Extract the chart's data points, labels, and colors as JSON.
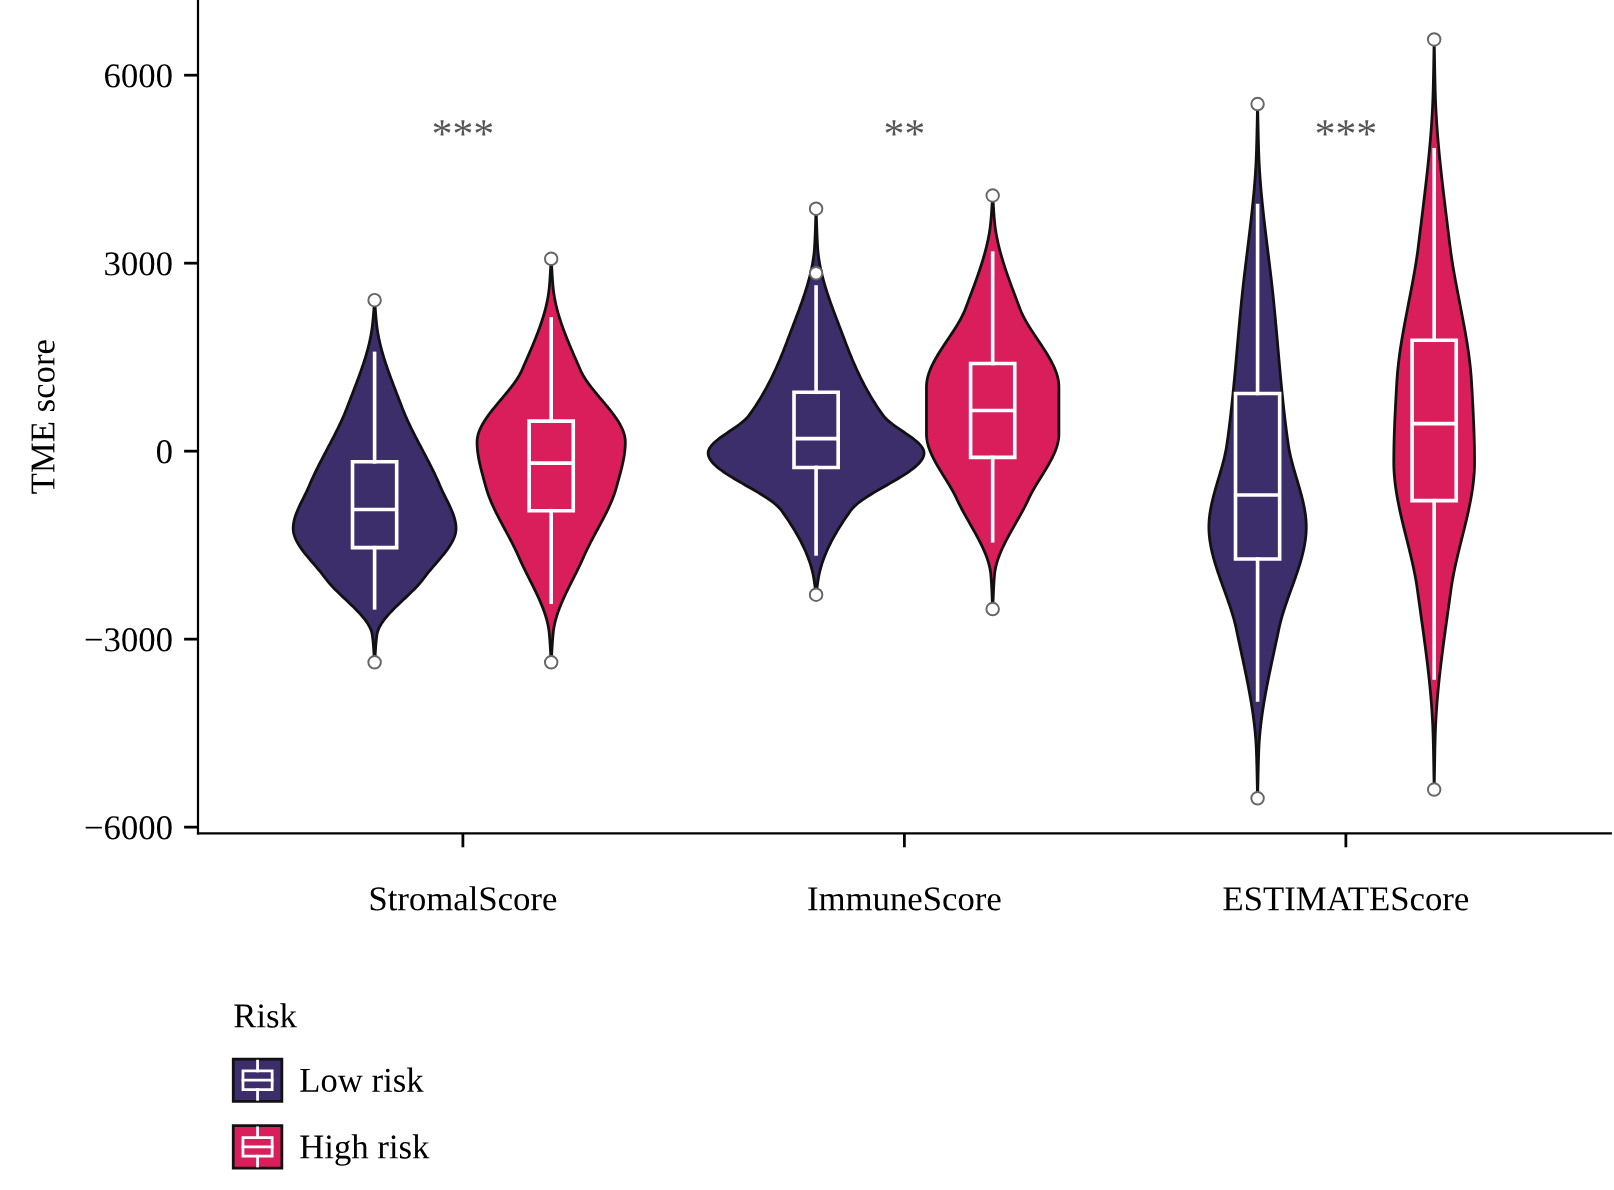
{
  "chart_data": {
    "type": "box",
    "ylabel": "TME score",
    "legend_title": "Risk",
    "legend": "bottom",
    "categories": [
      "StromalScore",
      "ImmuneScore",
      "ESTIMATEScore"
    ],
    "series": [
      {
        "name": "Low risk",
        "color": "#3c2d6b",
        "boxes": [
          {
            "low": -2500,
            "q1": -1540,
            "median": -930,
            "q3": -170,
            "high": 1560,
            "outliers": [
              -3370,
              2410
            ]
          },
          {
            "low": -1640,
            "q1": -260,
            "median": 200,
            "q3": 940,
            "high": 2620,
            "outliers": [
              -2290,
              2840,
              3870
            ]
          },
          {
            "low": -3970,
            "q1": -1720,
            "median": -700,
            "q3": 920,
            "high": 3920,
            "outliers": [
              -5540,
              5540
            ]
          }
        ]
      },
      {
        "name": "High risk",
        "color": "#da1d5b",
        "boxes": [
          {
            "low": -2410,
            "q1": -950,
            "median": -190,
            "q3": 480,
            "high": 2110,
            "outliers": [
              -3370,
              3070
            ]
          },
          {
            "low": -1430,
            "q1": -100,
            "median": 650,
            "q3": 1400,
            "high": 3160,
            "outliers": [
              -2520,
              4080
            ]
          },
          {
            "low": -3620,
            "q1": -790,
            "median": 440,
            "q3": 1770,
            "high": 4810,
            "outliers": [
              -5400,
              6570
            ]
          }
        ]
      }
    ],
    "ylim": [
      -6100,
      7200
    ],
    "yticks": [
      {
        "value": -6000,
        "label": "−6000"
      },
      {
        "value": -3000,
        "label": "−3000"
      },
      0,
      3000,
      6000
    ],
    "annotations": [
      "***",
      "**",
      "***"
    ]
  }
}
